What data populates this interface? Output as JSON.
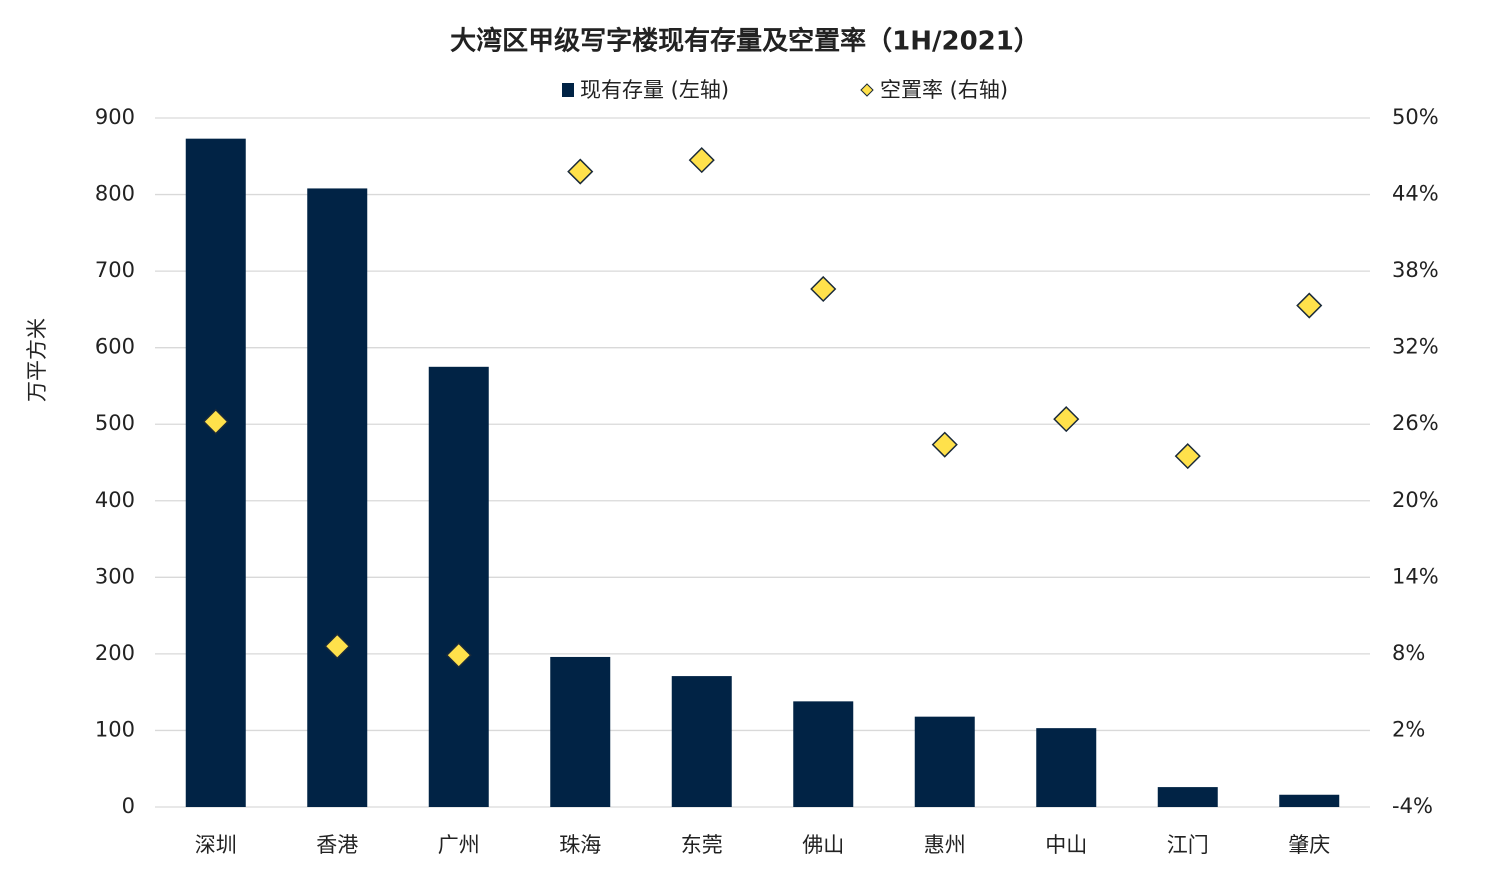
{
  "chart_data": {
    "type": "bar",
    "title": "大湾区甲级写字楼现有存量及空置率（1H/2021）",
    "y_label": "万平方米",
    "categories": [
      "深圳",
      "香港",
      "广州",
      "珠海",
      "东莞",
      "佛山",
      "惠州",
      "中山",
      "江门",
      "肇庆"
    ],
    "series": [
      {
        "name": "现有存量 (左轴)",
        "type": "bar",
        "color": "#012345",
        "axis": "y",
        "values": [
          873,
          808,
          575,
          196,
          171,
          138,
          118,
          103,
          26,
          16
        ]
      },
      {
        "name": "空置率 (右轴)",
        "type": "scatter",
        "color": "#ffe14b",
        "axis": "y2",
        "values": [
          26.2,
          8.6,
          7.9,
          45.8,
          46.7,
          36.6,
          24.4,
          26.4,
          23.5,
          35.3
        ]
      }
    ],
    "ylim": [
      0,
      900
    ],
    "yticks": [
      0,
      100,
      200,
      300,
      400,
      500,
      600,
      700,
      800,
      900
    ],
    "y2lim": [
      -4,
      50
    ],
    "y2ticks": [
      {
        "value": -4,
        "label": "-4%"
      },
      {
        "value": 2,
        "label": "2%"
      },
      {
        "value": 8,
        "label": "8%"
      },
      {
        "value": 14,
        "label": "14%"
      },
      {
        "value": 20,
        "label": "20%"
      },
      {
        "value": 26,
        "label": "26%"
      },
      {
        "value": 32,
        "label": "32%"
      },
      {
        "value": 38,
        "label": "38%"
      },
      {
        "value": 44,
        "label": "44%"
      },
      {
        "value": 50,
        "label": "50%"
      }
    ],
    "grid": true
  }
}
